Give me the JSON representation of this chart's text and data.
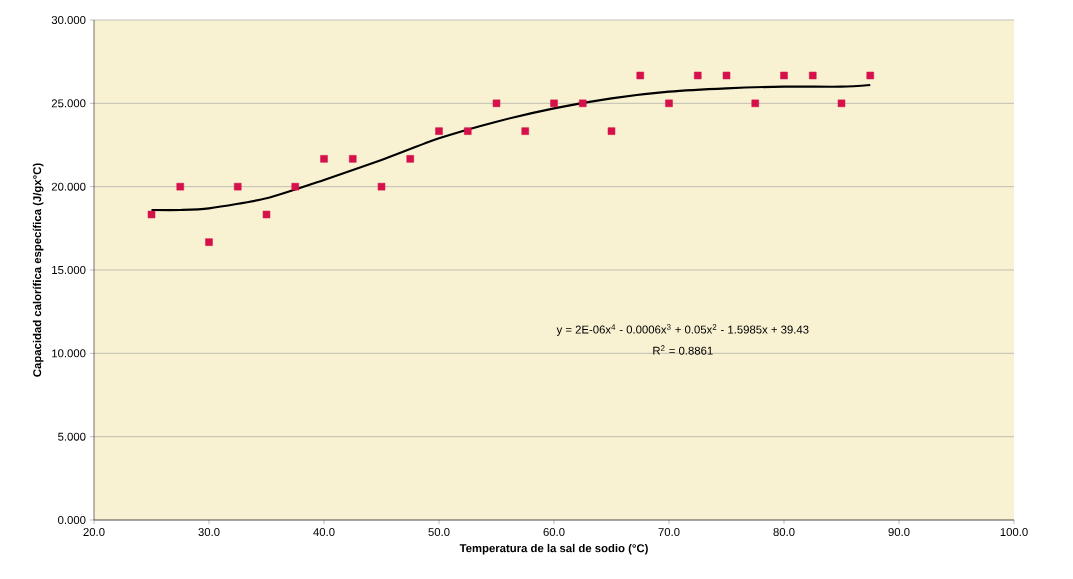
{
  "chart_data": {
    "type": "scatter",
    "xlabel": "Temperatura de la sal de sodio  (°C)",
    "ylabel": "Capacidad calorífica específica (J/gx°C)",
    "x": [
      25,
      27.5,
      30,
      32.5,
      35,
      37.5,
      40,
      42.5,
      45,
      47.5,
      50,
      52.5,
      55,
      57.5,
      60,
      62.5,
      65,
      67.5,
      70,
      72.5,
      75,
      77.5,
      80,
      82.5,
      85,
      87.5
    ],
    "series": [
      {
        "color": "#d6104a",
        "marker": "square",
        "values": [
          18.33,
          20,
          16.67,
          20,
          18.33,
          20,
          21.67,
          21.67,
          20,
          21.67,
          23.33,
          23.33,
          25,
          23.33,
          25,
          25,
          23.33,
          26.67,
          25,
          26.67,
          26.67,
          25,
          26.67,
          26.67,
          25,
          26.67
        ]
      },
      {
        "type": "line",
        "color": "#000000",
        "marker": "none",
        "x": [
          25,
          27.5,
          30,
          35,
          40,
          45,
          50,
          55,
          60,
          65,
          70,
          75,
          80,
          85,
          87.5
        ],
        "values": [
          18.6,
          18.6,
          18.7,
          19.3,
          20.4,
          21.6,
          22.9,
          23.9,
          24.7,
          25.3,
          25.7,
          25.9,
          26.0,
          26.0,
          26.1
        ]
      }
    ],
    "annotations": [
      "y = 2E-06x$^{4}$ - 0.0006x$^{3}$ + 0.05x$^{2}$ - 1.5985x + 39.43",
      "R$^{2}$ = 0.8861"
    ],
    "xlim": [
      20,
      100
    ],
    "xticks": [
      {
        "value": 20,
        "label": "20.0"
      },
      {
        "value": 30,
        "label": "30.0"
      },
      {
        "value": 40,
        "label": "40.0"
      },
      {
        "value": 50,
        "label": "50.0"
      },
      {
        "value": 60,
        "label": "60.0"
      },
      {
        "value": 70,
        "label": "70.0"
      },
      {
        "value": 80,
        "label": "80.0"
      },
      {
        "value": 90,
        "label": "90.0"
      },
      {
        "value": 100,
        "label": "100.0"
      }
    ],
    "ylim": [
      0,
      30
    ],
    "yticks": [
      {
        "value": 0,
        "label": "0.000"
      },
      {
        "value": 5,
        "label": "5.000"
      },
      {
        "value": 10,
        "label": "10.000"
      },
      {
        "value": 15,
        "label": "15.000"
      },
      {
        "value": 20,
        "label": "20.000"
      },
      {
        "value": 25,
        "label": "25.000"
      },
      {
        "value": 30,
        "label": "30.000"
      }
    ],
    "grid": "y"
  }
}
